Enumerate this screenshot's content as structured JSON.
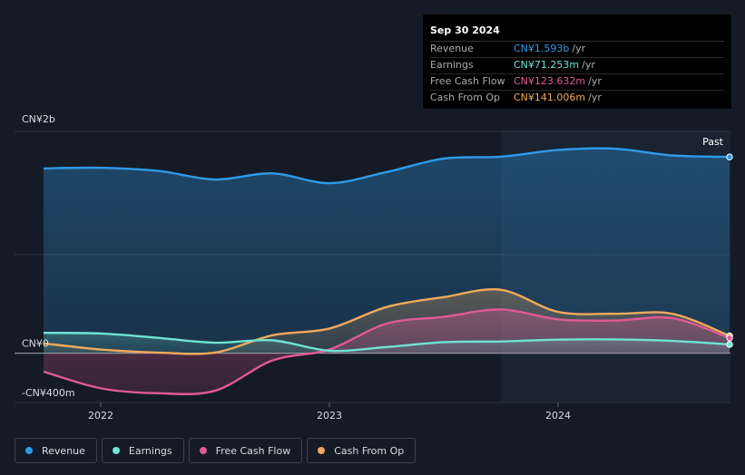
{
  "tooltip": {
    "date": "Sep 30 2024",
    "rows": [
      {
        "label": "Revenue",
        "value": "CN¥1.593b",
        "unit": "/yr",
        "color": "#2f9ae8"
      },
      {
        "label": "Earnings",
        "value": "CN¥71.253m",
        "unit": "/yr",
        "color": "#6fe3d3"
      },
      {
        "label": "Free Cash Flow",
        "value": "CN¥123.632m",
        "unit": "/yr",
        "color": "#df5a94"
      },
      {
        "label": "Cash From Op",
        "value": "CN¥141.006m",
        "unit": "/yr",
        "color": "#efa95b"
      }
    ]
  },
  "legend": [
    {
      "label": "Revenue",
      "color": "#2f9ae8"
    },
    {
      "label": "Earnings",
      "color": "#6fe3d3"
    },
    {
      "label": "Free Cash Flow",
      "color": "#df5a94"
    },
    {
      "label": "Cash From Op",
      "color": "#efa95b"
    }
  ],
  "chart_data": {
    "type": "area",
    "title": "",
    "xlabel": "",
    "ylabel": "",
    "past_label": "Past",
    "xlim": [
      2021.75,
      2024.75
    ],
    "ylim": [
      -400,
      1800
    ],
    "y_tick_labels": [
      {
        "value": 1600,
        "label": "CN¥2b"
      },
      {
        "value": 0,
        "label": "CN¥0"
      },
      {
        "value": -400,
        "label": "-CN¥400m"
      }
    ],
    "x_tick_labels": [
      {
        "value": 2022.0,
        "label": "2022"
      },
      {
        "value": 2023.0,
        "label": "2023"
      },
      {
        "value": 2024.0,
        "label": "2024"
      }
    ],
    "past_start": 2023.75,
    "series": [
      {
        "name": "Revenue",
        "color": "#2f9ae8",
        "x": [
          2021.75,
          2022.0,
          2022.25,
          2022.5,
          2022.75,
          2023.0,
          2023.25,
          2023.5,
          2023.75,
          2024.0,
          2024.25,
          2024.5,
          2024.75
        ],
        "values": [
          1500,
          1505,
          1480,
          1410,
          1460,
          1380,
          1470,
          1580,
          1595,
          1650,
          1660,
          1605,
          1593
        ]
      },
      {
        "name": "Earnings",
        "color": "#6fe3d3",
        "x": [
          2021.75,
          2022.0,
          2022.25,
          2022.5,
          2022.75,
          2023.0,
          2023.25,
          2023.5,
          2023.75,
          2024.0,
          2024.25,
          2024.5,
          2024.75
        ],
        "values": [
          165,
          160,
          125,
          85,
          105,
          20,
          50,
          90,
          95,
          110,
          112,
          100,
          71
        ]
      },
      {
        "name": "Free Cash Flow",
        "color": "#df5a94",
        "x": [
          2021.75,
          2022.0,
          2022.25,
          2022.5,
          2022.75,
          2023.0,
          2023.25,
          2023.5,
          2023.75,
          2024.0,
          2024.25,
          2024.5,
          2024.75
        ],
        "values": [
          -150,
          -285,
          -325,
          -305,
          -60,
          30,
          240,
          295,
          355,
          275,
          265,
          285,
          124
        ]
      },
      {
        "name": "Cash From Op",
        "color": "#efa95b",
        "x": [
          2021.75,
          2022.0,
          2022.25,
          2022.5,
          2022.75,
          2023.0,
          2023.25,
          2023.5,
          2023.75,
          2024.0,
          2024.25,
          2024.5,
          2024.75
        ],
        "values": [
          80,
          30,
          5,
          5,
          145,
          200,
          375,
          455,
          515,
          335,
          320,
          320,
          141
        ]
      }
    ]
  }
}
